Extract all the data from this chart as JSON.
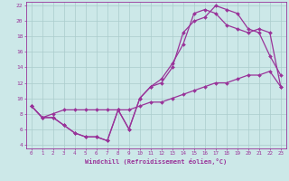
{
  "xlabel": "Windchill (Refroidissement éolien,°C)",
  "bg_color": "#cce8e8",
  "line_color": "#993399",
  "grid_color": "#aacccc",
  "xlim": [
    -0.5,
    23.5
  ],
  "ylim": [
    3.5,
    22.5
  ],
  "xticks": [
    0,
    1,
    2,
    3,
    4,
    5,
    6,
    7,
    8,
    9,
    10,
    11,
    12,
    13,
    14,
    15,
    16,
    17,
    18,
    19,
    20,
    21,
    22,
    23
  ],
  "yticks": [
    4,
    6,
    8,
    10,
    12,
    14,
    16,
    18,
    20,
    22
  ],
  "line1_x": [
    0,
    1,
    2,
    3,
    4,
    5,
    6,
    7,
    8,
    9,
    10,
    11,
    12,
    13,
    14,
    15,
    16,
    17,
    18,
    19,
    20,
    21,
    22,
    23
  ],
  "line1_y": [
    9.0,
    7.5,
    7.5,
    6.5,
    5.5,
    5.0,
    5.0,
    4.5,
    8.5,
    6.0,
    10.0,
    11.5,
    12.0,
    14.0,
    18.5,
    20.0,
    20.5,
    22.0,
    21.5,
    21.0,
    19.0,
    18.5,
    15.5,
    13.0
  ],
  "line2_x": [
    0,
    1,
    2,
    3,
    4,
    5,
    6,
    7,
    8,
    9,
    10,
    11,
    12,
    13,
    14,
    15,
    16,
    17,
    18,
    19,
    20,
    21,
    22,
    23
  ],
  "line2_y": [
    9.0,
    7.5,
    7.5,
    6.5,
    5.5,
    5.0,
    5.0,
    4.5,
    8.5,
    6.0,
    10.0,
    11.5,
    12.5,
    14.5,
    17.0,
    21.0,
    21.5,
    21.0,
    19.5,
    19.0,
    18.5,
    19.0,
    18.5,
    11.5
  ],
  "line3_x": [
    0,
    1,
    2,
    3,
    4,
    5,
    6,
    7,
    8,
    9,
    10,
    11,
    12,
    13,
    14,
    15,
    16,
    17,
    18,
    19,
    20,
    21,
    22,
    23
  ],
  "line3_y": [
    9.0,
    7.5,
    8.0,
    8.5,
    8.5,
    8.5,
    8.5,
    8.5,
    8.5,
    8.5,
    9.0,
    9.5,
    9.5,
    10.0,
    10.5,
    11.0,
    11.5,
    12.0,
    12.0,
    12.5,
    13.0,
    13.0,
    13.5,
    11.5
  ]
}
